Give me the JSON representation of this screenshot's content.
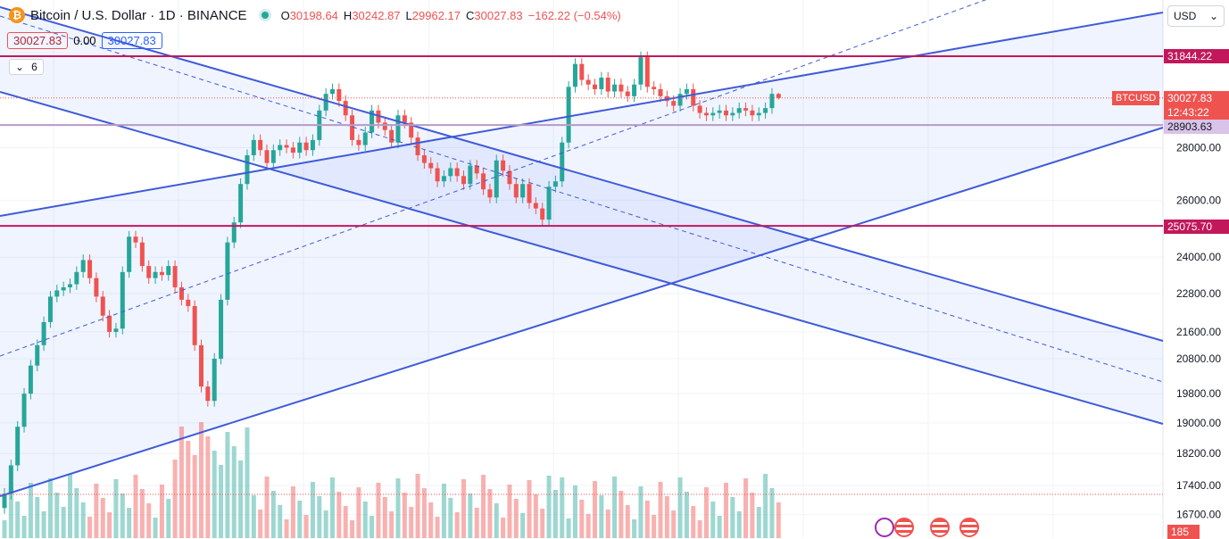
{
  "header": {
    "symbol_title": "Bitcoin / U.S. Dollar · 1D · BINANCE",
    "ohlc": [
      {
        "k": "O",
        "v": "30198.64"
      },
      {
        "k": "H",
        "v": "30242.87"
      },
      {
        "k": "L",
        "v": "29962.17"
      },
      {
        "k": "C",
        "v": "30027.83"
      },
      {
        "k": "",
        "v": "−162.22 (−0.54%)"
      }
    ],
    "bid": "30027.83",
    "spread": "0.00",
    "ask": "30027.83",
    "indicator_count": "6",
    "currency": "USD"
  },
  "price_labels": {
    "top_level": "31844.22",
    "symbol_tag": "BTCUSD",
    "current_price": "30027.83",
    "countdown": "12:43:22",
    "mid_level": "28903.63",
    "low_level": "25075.70",
    "bottom_axis": "185"
  },
  "colors": {
    "up": "#26a69a",
    "down": "#ef5350",
    "channel": "#3f5bd8",
    "level_red": "#c2185b",
    "level_purple": "#b69ac9"
  },
  "chart_data": {
    "type": "candlestick",
    "title": "Bitcoin / U.S. Dollar · 1D · BINANCE",
    "y_axis_ticks": [
      31844.22,
      28000,
      26000,
      24000,
      22800,
      21600,
      20800,
      19800,
      19000,
      18200,
      17400,
      16700
    ],
    "y_scale": "log",
    "horizontal_levels": [
      31844.22,
      28903.63,
      25075.7
    ],
    "current_price": 30027.83,
    "last_candle": {
      "open": 30198.64,
      "high": 30242.87,
      "low": 29962.17,
      "close": 30027.83
    },
    "close_series_approx": [
      17200,
      17900,
      18900,
      19800,
      20600,
      21200,
      21900,
      22700,
      22900,
      23000,
      23100,
      23500,
      23900,
      23300,
      22700,
      22100,
      21600,
      21700,
      23500,
      24700,
      24500,
      23700,
      23300,
      23500,
      23400,
      23700,
      23000,
      22600,
      22400,
      21200,
      20000,
      19600,
      20800,
      22600,
      24500,
      25200,
      26600,
      27700,
      28300,
      27900,
      27400,
      27900,
      28100,
      28000,
      27800,
      28200,
      27900,
      28300,
      29500,
      30200,
      30400,
      29900,
      29300,
      28300,
      28100,
      28600,
      29500,
      29000,
      28700,
      28200,
      29300,
      29000,
      28400,
      27700,
      27400,
      27200,
      26700,
      26900,
      27200,
      26900,
      26600,
      27300,
      27000,
      26400,
      26100,
      27500,
      27100,
      26600,
      26100,
      26600,
      25900,
      25700,
      25300,
      26500,
      26700,
      28200,
      30500,
      31500,
      30800,
      30600,
      30400,
      30900,
      30300,
      30600,
      30300,
      30100,
      30600,
      31800,
      30500,
      30400,
      30100,
      29900,
      29700,
      30200,
      30400,
      29700,
      29400,
      29300,
      29400,
      29500,
      29300,
      29400,
      29600,
      29500,
      29300,
      29400,
      29600,
      30200,
      30027.83
    ]
  }
}
